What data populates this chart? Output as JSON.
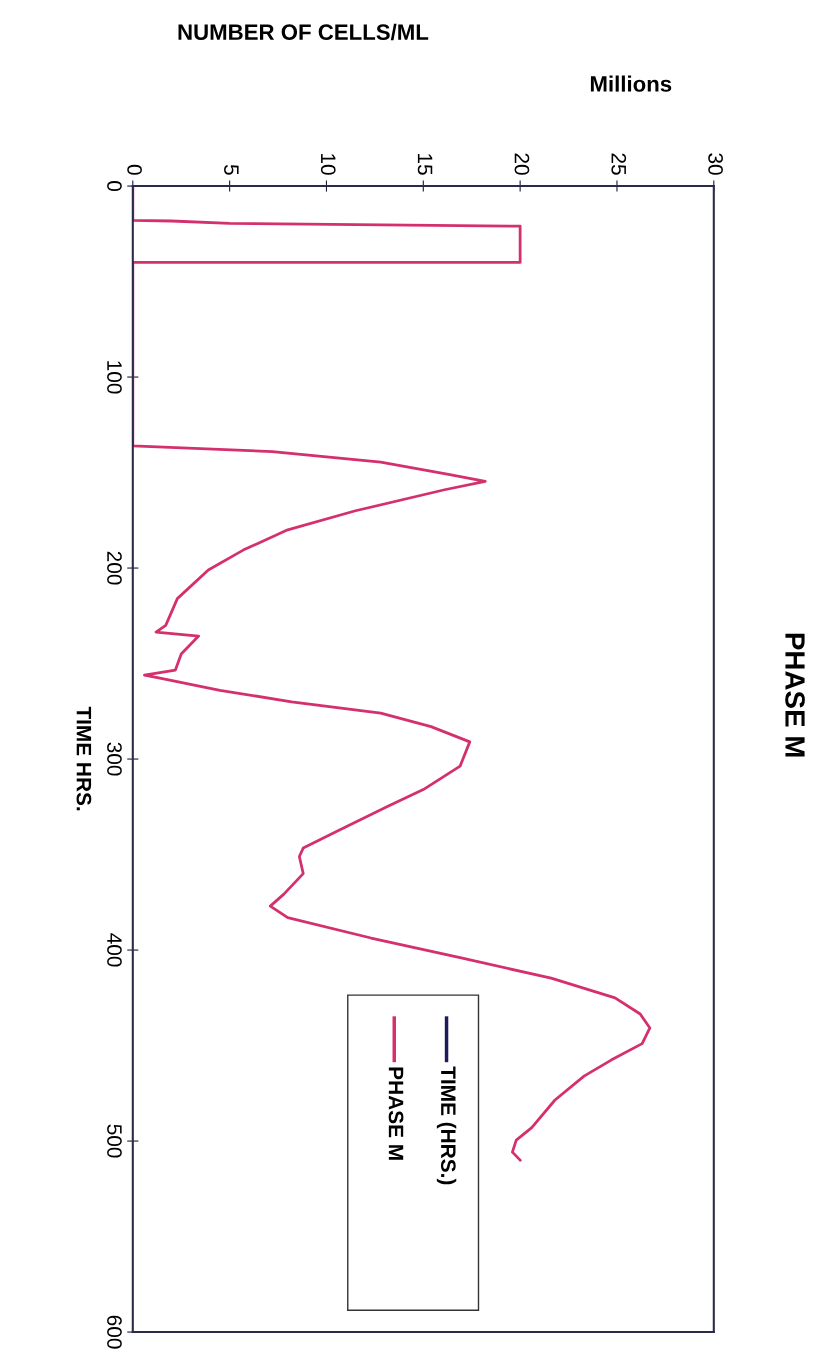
{
  "chart_data": {
    "type": "line",
    "title": "PHASE M",
    "ylabel": "TIME HRS.",
    "annotations": [
      "NUMBER OF CELLS/ML",
      "Millions"
    ],
    "xlim": [
      0,
      30
    ],
    "xticks": [
      0,
      5,
      10,
      15,
      20,
      25,
      30
    ],
    "ylim": [
      600,
      0
    ],
    "yticks": [
      0,
      100,
      200,
      300,
      400,
      500,
      600
    ],
    "grid": false,
    "legend": "bottom",
    "marker": "none",
    "line_style": "solid",
    "series": [
      {
        "name": "TIME (HRS.)",
        "color": "#1c1c5a"
      },
      {
        "name": "PHASE M",
        "color": "#d4306e",
        "x": [
          0,
          0,
          2,
          5,
          20,
          20,
          0,
          0,
          7.2,
          12.8,
          16.3,
          18.2,
          16.1,
          11.5,
          8.0,
          5.7,
          3.9,
          2.3,
          1.7,
          1.2,
          3.4,
          2.5,
          2.2,
          0.6,
          1.4,
          4.5,
          8.2,
          12.8,
          15.4,
          17.4,
          16.9,
          15.0,
          13.2,
          10.7,
          8.8,
          8.6,
          8.8,
          7.8,
          7.1,
          8.0,
          12.3,
          16.9,
          21.6,
          24.9,
          26.2,
          26.7,
          26.3,
          24.7,
          23.3,
          21.8,
          20.6,
          19.8,
          19.6,
          20.0
        ],
        "values": [
          0,
          18,
          18.3,
          19.5,
          21,
          40,
          40,
          136,
          139,
          144.5,
          151,
          154.6,
          159,
          170,
          180,
          190.6,
          201,
          216,
          230,
          233.5,
          235.6,
          245,
          253.4,
          256,
          257.6,
          264,
          270,
          276,
          283,
          291,
          303.7,
          316,
          324.6,
          337,
          346.6,
          351,
          360,
          370.7,
          377,
          383,
          393.7,
          404,
          414.7,
          425,
          433.5,
          440.8,
          449,
          457.6,
          466,
          478.5,
          493,
          499.5,
          505.8,
          510
        ]
      }
    ]
  }
}
